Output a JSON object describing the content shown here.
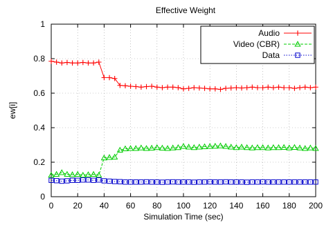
{
  "chart_data": {
    "type": "line",
    "title": "Effective Weight",
    "xlabel": "Simulation Time (sec)",
    "ylabel": "ew[i]",
    "xlim": [
      0,
      200
    ],
    "ylim": [
      0,
      1
    ],
    "xticks": [
      0,
      20,
      40,
      60,
      80,
      100,
      120,
      140,
      160,
      180,
      200
    ],
    "yticks": [
      0,
      0.2,
      0.4,
      0.6,
      0.8,
      1
    ],
    "xtick_labels": [
      "0",
      "20",
      "40",
      "60",
      "80",
      "100",
      "120",
      "140",
      "160",
      "180",
      "200"
    ],
    "ytick_labels": [
      "0",
      "0.2",
      "0.4",
      "0.6",
      "0.8",
      "1"
    ],
    "grid": true,
    "legend_position": "top-right",
    "x": [
      0,
      4,
      8,
      12,
      16,
      20,
      24,
      28,
      32,
      36,
      40,
      44,
      48,
      52,
      56,
      60,
      64,
      68,
      72,
      76,
      80,
      84,
      88,
      92,
      96,
      100,
      104,
      108,
      112,
      116,
      120,
      124,
      128,
      132,
      136,
      140,
      144,
      148,
      152,
      156,
      160,
      164,
      168,
      172,
      176,
      180,
      184,
      188,
      192,
      196,
      200
    ],
    "series": [
      {
        "name": "Audio",
        "color": "#ff0000",
        "marker": "plus",
        "line_style": "solid",
        "values": [
          0.785,
          0.78,
          0.775,
          0.778,
          0.775,
          0.775,
          0.778,
          0.775,
          0.775,
          0.78,
          0.69,
          0.69,
          0.685,
          0.645,
          0.643,
          0.64,
          0.638,
          0.635,
          0.638,
          0.64,
          0.635,
          0.632,
          0.635,
          0.635,
          0.632,
          0.625,
          0.628,
          0.632,
          0.63,
          0.628,
          0.625,
          0.625,
          0.622,
          0.628,
          0.63,
          0.632,
          0.63,
          0.632,
          0.635,
          0.632,
          0.632,
          0.635,
          0.632,
          0.635,
          0.632,
          0.632,
          0.628,
          0.632,
          0.635,
          0.632,
          0.635
        ]
      },
      {
        "name": "Video (CBR)",
        "color": "#00cc00",
        "marker": "triangle",
        "line_style": "dashed",
        "values": [
          0.125,
          0.13,
          0.14,
          0.13,
          0.128,
          0.13,
          0.125,
          0.128,
          0.13,
          0.125,
          0.225,
          0.228,
          0.23,
          0.27,
          0.278,
          0.28,
          0.28,
          0.283,
          0.28,
          0.282,
          0.285,
          0.282,
          0.28,
          0.283,
          0.285,
          0.292,
          0.288,
          0.285,
          0.288,
          0.29,
          0.292,
          0.293,
          0.295,
          0.292,
          0.288,
          0.285,
          0.288,
          0.285,
          0.283,
          0.285,
          0.285,
          0.283,
          0.285,
          0.285,
          0.286,
          0.283,
          0.286,
          0.283,
          0.28,
          0.283,
          0.28
        ]
      },
      {
        "name": "Data",
        "color": "#0000cc",
        "marker": "square",
        "line_style": "dotted",
        "values": [
          0.095,
          0.093,
          0.09,
          0.092,
          0.095,
          0.095,
          0.097,
          0.097,
          0.095,
          0.097,
          0.092,
          0.09,
          0.088,
          0.087,
          0.085,
          0.085,
          0.085,
          0.085,
          0.086,
          0.085,
          0.085,
          0.084,
          0.085,
          0.086,
          0.085,
          0.085,
          0.085,
          0.084,
          0.085,
          0.085,
          0.086,
          0.085,
          0.085,
          0.086,
          0.085,
          0.085,
          0.085,
          0.084,
          0.085,
          0.085,
          0.086,
          0.085,
          0.085,
          0.085,
          0.085,
          0.085,
          0.085,
          0.085,
          0.085,
          0.085,
          0.085
        ]
      }
    ]
  }
}
